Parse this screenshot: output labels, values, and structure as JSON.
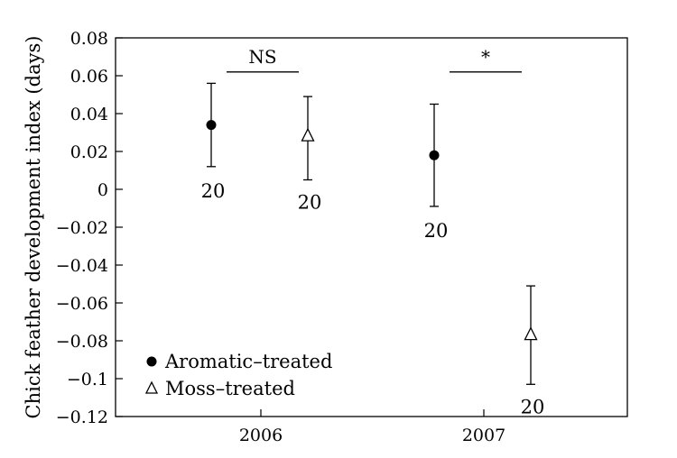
{
  "chart_data": {
    "type": "scatter",
    "ylabel": "Chick feather development index (days)",
    "xlabel": "",
    "ylim": [
      -0.12,
      0.08
    ],
    "yticks": [
      0.08,
      0.06,
      0.04,
      0.02,
      0,
      -0.02,
      -0.04,
      -0.06,
      -0.08,
      -0.1,
      -0.12
    ],
    "ytick_labels": [
      "0.08",
      "0.06",
      "0.04",
      "0.02",
      "0",
      "−0.02",
      "−0.04",
      "−0.06",
      "−0.08",
      "−0.1",
      "−0.12"
    ],
    "categories": [
      "2006",
      "2007"
    ],
    "grid": false,
    "legend_position": "bottom-left",
    "series": [
      {
        "name": "Aromatic–treated",
        "marker": "filled-circle",
        "values": [
          0.034,
          0.018
        ],
        "error_low": [
          0.012,
          -0.009
        ],
        "error_high": [
          0.056,
          0.045
        ],
        "n": [
          "20",
          "20"
        ]
      },
      {
        "name": "Moss–treated",
        "marker": "open-triangle",
        "values": [
          0.028,
          -0.077
        ],
        "error_low": [
          0.005,
          -0.103
        ],
        "error_high": [
          0.049,
          -0.051
        ],
        "n": [
          "20",
          "20"
        ]
      }
    ],
    "annotations": [
      {
        "year": "2006",
        "text": "NS",
        "y": 0.062
      },
      {
        "year": "2007",
        "text": "*",
        "y": 0.062
      }
    ]
  }
}
